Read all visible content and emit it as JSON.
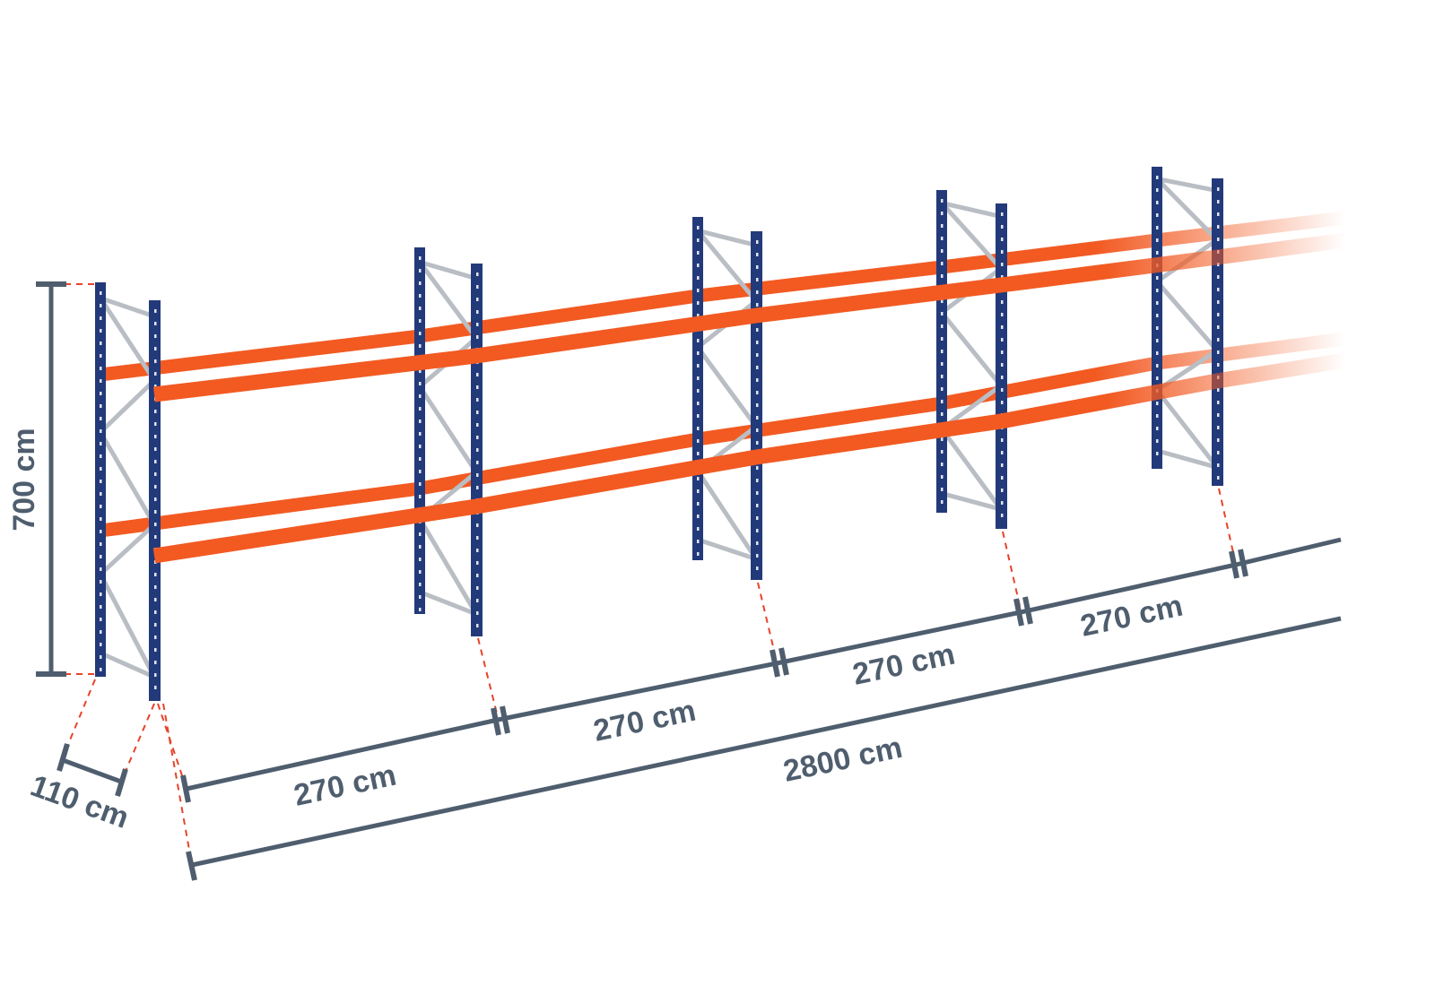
{
  "colors": {
    "upright": "#233a7a",
    "beam": "#f25a22",
    "bracing": "#b9bec4",
    "dimension": "#4f5e6e",
    "guide": "#e8432a"
  },
  "dimensions": {
    "height": "700 cm",
    "depth": "110 cm",
    "bays": [
      "270 cm",
      "270 cm",
      "270 cm",
      "270 cm"
    ],
    "total_length": "2800 cm"
  }
}
